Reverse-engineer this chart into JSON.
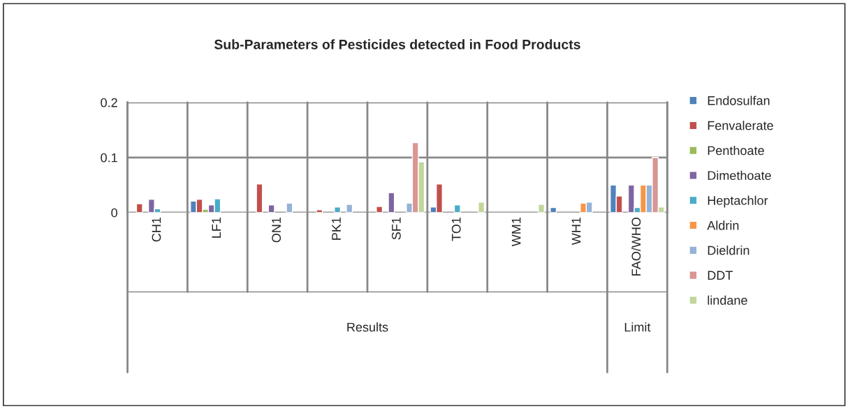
{
  "chart_data": {
    "type": "bar",
    "title": "Sub-Parameters of Pesticides detected in Food Products",
    "categories": [
      "CH1",
      "LF1",
      "ON1",
      "PK1",
      "SF1",
      "TO1",
      "WM1",
      "WH1",
      "FAO/WHO"
    ],
    "series": [
      {
        "name": "Endosulfan",
        "color": "#4f81bd",
        "values": [
          null,
          0.021,
          null,
          null,
          null,
          0.01,
          null,
          0.009,
          0.05
        ]
      },
      {
        "name": "Fenvalerate",
        "color": "#c0504d",
        "values": [
          0.016,
          0.024,
          0.052,
          0.005,
          0.011,
          0.052,
          null,
          null,
          0.03
        ]
      },
      {
        "name": "Penthoate",
        "color": "#9bbb59",
        "values": [
          null,
          0.006,
          null,
          null,
          null,
          null,
          null,
          null,
          null
        ]
      },
      {
        "name": "Dimethoate",
        "color": "#8064a2",
        "values": [
          0.024,
          0.014,
          0.014,
          null,
          0.036,
          null,
          null,
          null,
          0.05
        ]
      },
      {
        "name": "Heptachlor",
        "color": "#4bacc6",
        "values": [
          0.007,
          0.025,
          null,
          0.01,
          null,
          0.014,
          null,
          null,
          0.009
        ]
      },
      {
        "name": "Aldrin",
        "color": "#f79646",
        "values": [
          null,
          null,
          null,
          null,
          null,
          null,
          null,
          0.017,
          0.05
        ]
      },
      {
        "name": "Dieldrin",
        "color": "#95b3d7",
        "values": [
          null,
          null,
          0.017,
          0.015,
          0.017,
          null,
          null,
          0.019,
          0.05
        ]
      },
      {
        "name": "DDT",
        "color": "#d99694",
        "values": [
          null,
          null,
          null,
          null,
          0.127,
          null,
          null,
          null,
          0.1
        ]
      },
      {
        "name": "lindane",
        "color": "#c3d69b",
        "values": [
          null,
          null,
          null,
          null,
          0.092,
          0.019,
          0.015,
          null,
          0.01
        ]
      }
    ],
    "ylim": [
      0,
      0.2
    ],
    "yticks": [
      0,
      0.1,
      0.2
    ],
    "grid": true,
    "legend": "right",
    "annotations": [
      "Results",
      "Limit"
    ]
  }
}
